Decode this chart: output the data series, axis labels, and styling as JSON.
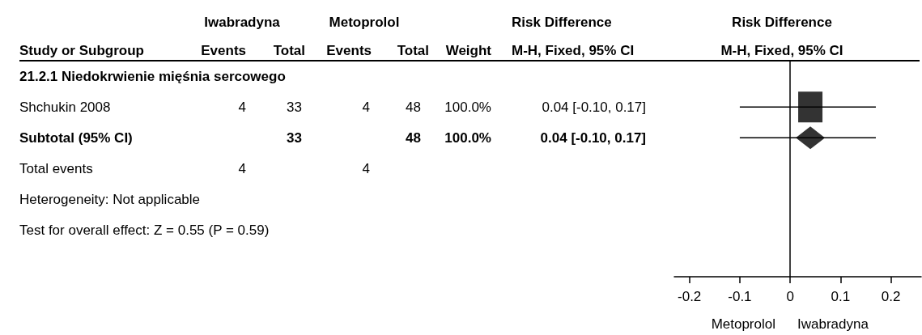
{
  "chart_data": {
    "type": "scatter",
    "orientation": "horizontal",
    "categories": [
      null,
      null,
      null,
      null,
      null,
      null,
      null
    ],
    "series": [
      {
        "color": "#000000",
        "marker": "square",
        "values": [
          null,
          0.04,
          null,
          null,
          null,
          null,
          null
        ],
        "errors": [
          null,
          [
            -0.1,
            0.17
          ],
          null,
          null,
          null,
          null,
          null
        ]
      },
      {
        "color": "#000000",
        "marker": "diamond",
        "values": [
          null,
          null,
          0.04,
          null,
          null,
          null,
          null
        ],
        "errors": [
          null,
          null,
          [
            -0.1,
            0.17
          ],
          null,
          null,
          null,
          null
        ]
      }
    ],
    "xlim": [
      -0.23,
      0.26
    ],
    "xticks": [
      -0.2,
      -0.1,
      0,
      0.1,
      0.2
    ],
    "ref_lines": [
      {
        "axis": "x",
        "value": 0,
        "color": "#000000"
      }
    ],
    "annotations": [
      "Iwabradyna",
      "Metoprolol",
      "Risk Difference",
      "Risk Difference",
      "Study or Subgroup",
      "Events",
      "Total",
      "Events",
      "Total",
      "Weight",
      "M-H, Fixed, 95% CI",
      "M-H, Fixed, 95% CI",
      "21.2.1 Niedokrwienie mięśnia sercowego",
      "Shchukin 2008",
      "4",
      "33",
      "4",
      "48",
      "100.0%",
      "0.04 [-0.10, 0.17]",
      "Subtotal (95% CI)",
      "33",
      "48",
      "100.0%",
      "0.04 [-0.10, 0.17]",
      "Total events",
      "4",
      "4",
      "Heterogeneity: Not applicable",
      "Test for overall effect: Z = 0.55 (P = 0.59)",
      "Metoprolol",
      "Iwabradyna"
    ]
  }
}
